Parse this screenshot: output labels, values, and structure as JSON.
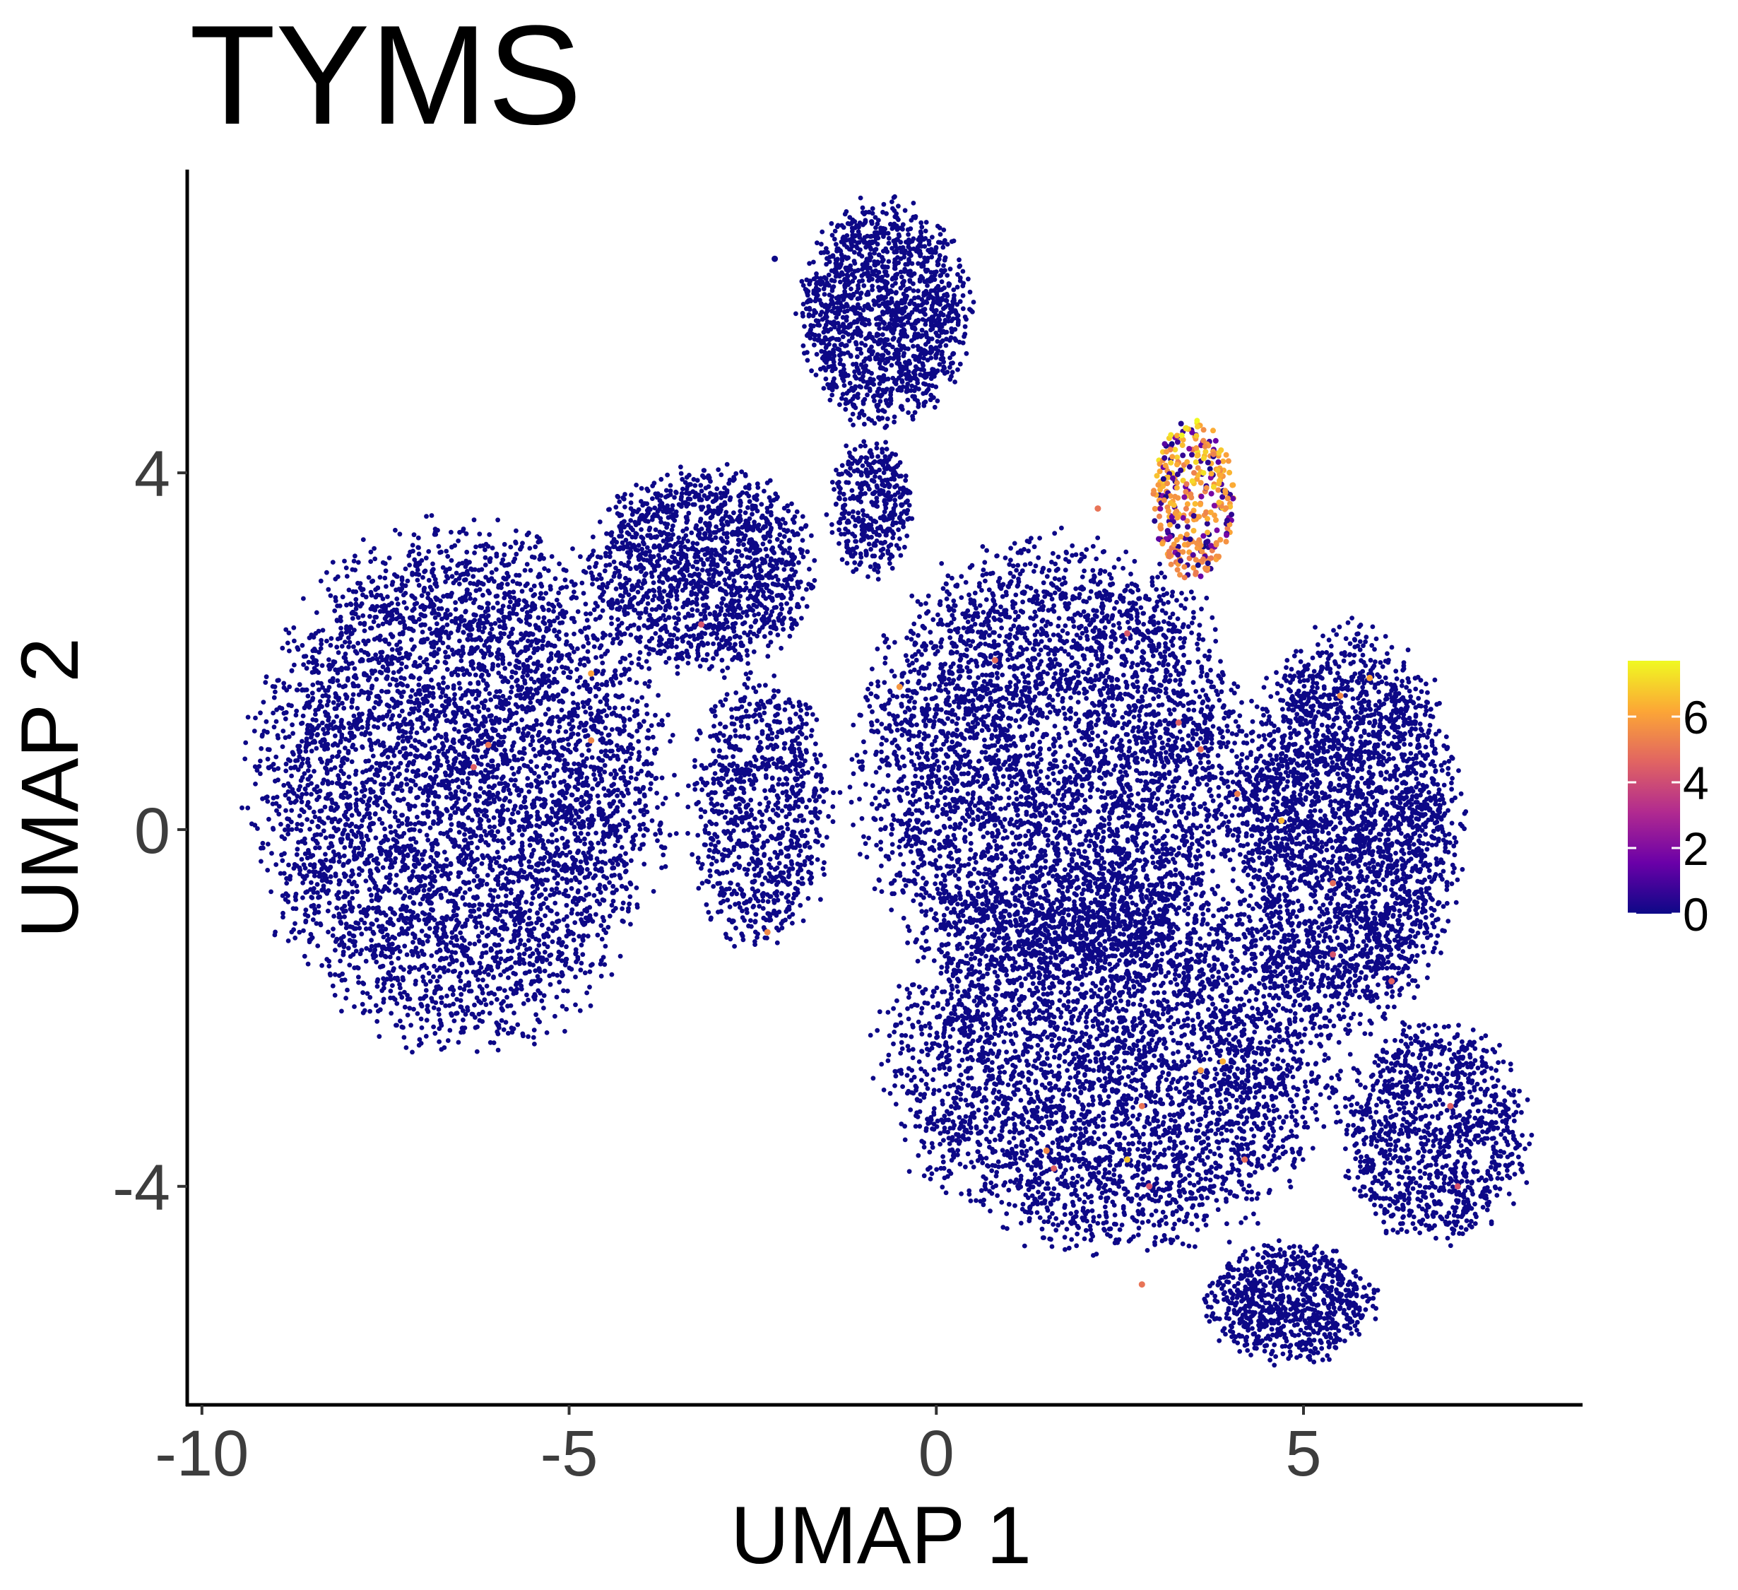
{
  "chart_data": {
    "type": "scatter",
    "title": "TYMS",
    "xlabel": "UMAP 1",
    "ylabel": "UMAP 2",
    "xlim": [
      -10.2,
      8.8
    ],
    "ylim": [
      -6.45,
      7.4
    ],
    "x_ticks": [
      -10,
      -5,
      0,
      5
    ],
    "x_tick_labels": [
      "-10",
      "-5",
      "0",
      "5"
    ],
    "y_ticks": [
      -4,
      0,
      4
    ],
    "y_tick_labels": [
      "-4",
      "0",
      "4"
    ],
    "grid": false,
    "legend": {
      "placement": "right",
      "type": "colorbar",
      "min": 0,
      "max": 7.7,
      "ticks": [
        0,
        2,
        4,
        6
      ],
      "tick_labels": [
        "0",
        "2",
        "4",
        "6"
      ],
      "colors": [
        "#0d0887",
        "#6a00a8",
        "#b12a90",
        "#e16462",
        "#fca636",
        "#f0f921"
      ]
    },
    "base_color": "#0d0887",
    "clusters": [
      {
        "name": "left",
        "cx": -6.5,
        "cy": 0.5,
        "rx": 2.9,
        "ry": 3.0,
        "n": 5200
      },
      {
        "name": "upper-middle",
        "cx": -3.2,
        "cy": 2.9,
        "rx": 1.6,
        "ry": 1.2,
        "n": 1500
      },
      {
        "name": "top",
        "cx": -0.7,
        "cy": 5.8,
        "rx": 1.2,
        "ry": 1.3,
        "n": 1500
      },
      {
        "name": "central",
        "cx": 1.6,
        "cy": 0.7,
        "rx": 2.8,
        "ry": 2.6,
        "n": 4500
      },
      {
        "name": "lower-middle",
        "cx": 2.4,
        "cy": -2.6,
        "rx": 3.2,
        "ry": 2.2,
        "n": 4200
      },
      {
        "name": "right",
        "cx": 5.6,
        "cy": 0.0,
        "rx": 1.6,
        "ry": 2.3,
        "n": 3000
      },
      {
        "name": "lower-right",
        "cx": 6.8,
        "cy": -3.4,
        "rx": 1.3,
        "ry": 1.3,
        "n": 1100
      },
      {
        "name": "bottom",
        "cx": 4.8,
        "cy": -5.3,
        "rx": 1.2,
        "ry": 0.7,
        "n": 800
      },
      {
        "name": "bridge",
        "cx": -2.4,
        "cy": 0.2,
        "rx": 1.0,
        "ry": 1.6,
        "n": 900
      },
      {
        "name": "stream",
        "cx": -0.9,
        "cy": 3.6,
        "rx": 0.6,
        "ry": 0.8,
        "n": 400
      }
    ],
    "high_cluster": {
      "cx": 3.5,
      "cy": 3.7,
      "rx": 0.55,
      "ry": 0.9,
      "n": 360,
      "min_value": 3.5,
      "max_value": 7.7
    },
    "outliers": [
      {
        "x": -2.2,
        "y": 6.4,
        "value": 0
      },
      {
        "x": 3.4,
        "y": 4.5,
        "value": 7.2
      },
      {
        "x": -6.3,
        "y": 0.7,
        "value": 4.5
      },
      {
        "x": -4.7,
        "y": 1.0,
        "value": 5.5
      },
      {
        "x": -4.7,
        "y": 1.75,
        "value": 6.0
      },
      {
        "x": -6.1,
        "y": 0.95,
        "value": 5.0
      },
      {
        "x": -3.2,
        "y": 2.3,
        "value": 4.2
      },
      {
        "x": -2.3,
        "y": -1.15,
        "value": 5.5
      },
      {
        "x": -0.5,
        "y": 1.6,
        "value": 5.8
      },
      {
        "x": 0.8,
        "y": 1.9,
        "value": 4.8
      },
      {
        "x": 3.3,
        "y": 1.2,
        "value": 4.5
      },
      {
        "x": 4.1,
        "y": 0.4,
        "value": 5.2
      },
      {
        "x": 4.7,
        "y": 0.1,
        "value": 6.5
      },
      {
        "x": 5.4,
        "y": -0.6,
        "value": 4.8
      },
      {
        "x": 5.5,
        "y": 1.5,
        "value": 5.5
      },
      {
        "x": 5.9,
        "y": 1.7,
        "value": 6.0
      },
      {
        "x": 5.4,
        "y": -1.4,
        "value": 4.2
      },
      {
        "x": 3.6,
        "y": -2.7,
        "value": 5.8
      },
      {
        "x": 3.9,
        "y": -2.6,
        "value": 6.3
      },
      {
        "x": 2.8,
        "y": -3.1,
        "value": 5.0
      },
      {
        "x": 2.6,
        "y": -3.7,
        "value": 6.8
      },
      {
        "x": 1.6,
        "y": -3.8,
        "value": 4.5
      },
      {
        "x": 1.5,
        "y": -3.6,
        "value": 5.5
      },
      {
        "x": 4.2,
        "y": -3.7,
        "value": 4.8
      },
      {
        "x": 2.9,
        "y": -4.0,
        "value": 4.2
      },
      {
        "x": 2.8,
        "y": -5.1,
        "value": 5.0
      },
      {
        "x": 7.0,
        "y": -3.1,
        "value": 4.5
      },
      {
        "x": 7.1,
        "y": -4.0,
        "value": 4.2
      },
      {
        "x": 6.2,
        "y": -1.7,
        "value": 4.6
      },
      {
        "x": 2.2,
        "y": 3.6,
        "value": 5.0
      },
      {
        "x": 2.6,
        "y": 2.2,
        "value": 4.3
      },
      {
        "x": 3.6,
        "y": 0.9,
        "value": 4.8
      }
    ]
  }
}
